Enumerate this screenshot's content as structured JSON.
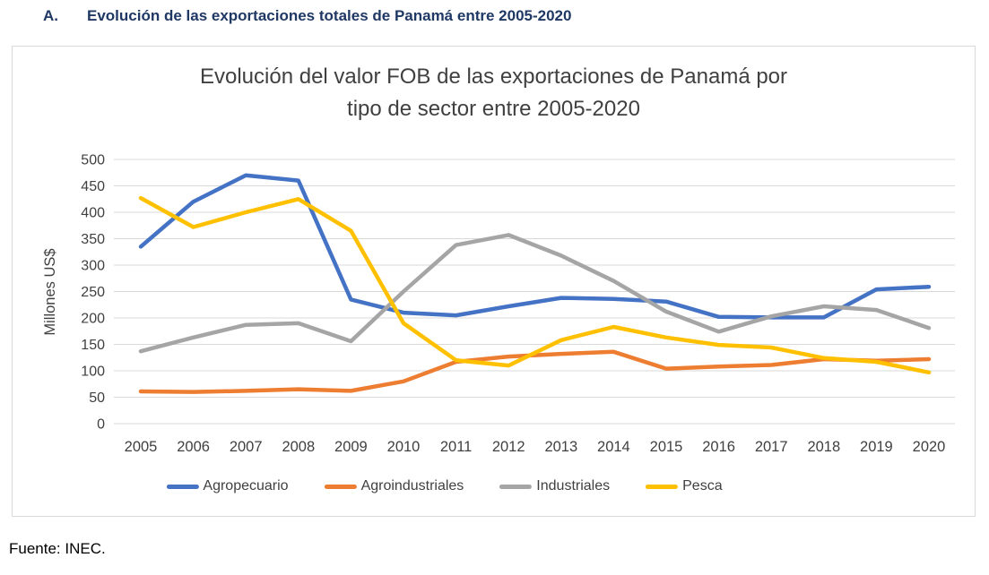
{
  "document": {
    "heading_label": "A.",
    "heading_text": "Evolución de las exportaciones totales de Panamá entre 2005-2020",
    "source_note": "Fuente: INEC."
  },
  "chart_data": {
    "type": "line",
    "title": "Evolución del valor FOB de las exportaciones de Panamá por tipo de sector entre 2005-2020",
    "title_line1": "Evolución del valor FOB de las exportaciones de Panamá por",
    "title_line2": "tipo de sector entre 2005-2020",
    "ylabel": "Millones US$",
    "xlabel": "",
    "ylim": [
      0,
      500
    ],
    "ytick_step": 50,
    "yticks": [
      0,
      50,
      100,
      150,
      200,
      250,
      300,
      350,
      400,
      450,
      500
    ],
    "grid": true,
    "legend_position": "bottom",
    "categories": [
      "2005",
      "2006",
      "2007",
      "2008",
      "2009",
      "2010",
      "2011",
      "2012",
      "2013",
      "2014",
      "2015",
      "2016",
      "2017",
      "2018",
      "2019",
      "2020"
    ],
    "series": [
      {
        "name": "Agropecuario",
        "color": "#4472C4",
        "values": [
          335,
          420,
          470,
          460,
          235,
          210,
          205,
          222,
          238,
          236,
          231,
          202,
          201,
          201,
          254,
          259
        ]
      },
      {
        "name": "Agroindustriales",
        "color": "#ED7D31",
        "values": [
          61,
          60,
          62,
          65,
          62,
          80,
          117,
          127,
          132,
          136,
          104,
          108,
          111,
          122,
          119,
          122
        ]
      },
      {
        "name": "Industriales",
        "color": "#A5A5A5",
        "values": [
          137,
          163,
          187,
          190,
          156,
          250,
          338,
          357,
          318,
          270,
          212,
          174,
          203,
          222,
          215,
          181
        ]
      },
      {
        "name": "Pesca",
        "color": "#FFC000",
        "values": [
          427,
          372,
          400,
          425,
          365,
          190,
          120,
          110,
          158,
          183,
          163,
          149,
          144,
          124,
          117,
          97
        ]
      }
    ]
  },
  "style": {
    "heading_color": "#1F3864",
    "axis_text_color": "#404040",
    "grid_color": "#D9D9D9",
    "border_color": "#D9D9D9"
  }
}
